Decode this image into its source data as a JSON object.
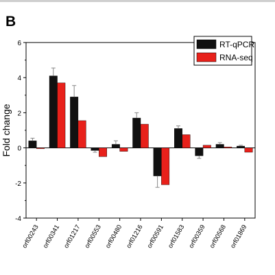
{
  "panel_label": "B",
  "chart_data": {
    "type": "bar",
    "title": "",
    "xlabel": "",
    "ylabel": "Fold change",
    "ylim": [
      -4,
      6
    ],
    "yticks": [
      "-4",
      "-2",
      "0",
      "2",
      "4",
      "6"
    ],
    "categories": [
      "orf00243",
      "orf00341",
      "orf01217",
      "orf00553",
      "orf00480",
      "orf01216",
      "orf00591",
      "orf01583",
      "orf00359",
      "orf00568",
      "orf01869"
    ],
    "series": [
      {
        "name": "RT-qPCR",
        "color": "#111111",
        "values": [
          0.4,
          4.1,
          2.9,
          -0.15,
          0.2,
          1.7,
          -1.6,
          1.1,
          -0.45,
          0.2,
          0.1
        ],
        "errors": [
          0.15,
          0.45,
          0.65,
          0.1,
          0.2,
          0.3,
          0.65,
          0.15,
          0.15,
          0.1,
          0.05
        ]
      },
      {
        "name": "RNA-seq",
        "color": "#e8211b",
        "values": [
          -0.05,
          3.7,
          1.55,
          -0.5,
          -0.2,
          1.35,
          -2.1,
          0.75,
          0.15,
          0.05,
          -0.25
        ],
        "errors": [
          0,
          0,
          0,
          0,
          0,
          0,
          0,
          0,
          0,
          0,
          0
        ]
      }
    ],
    "legend_position": "top-right",
    "grid": false
  }
}
